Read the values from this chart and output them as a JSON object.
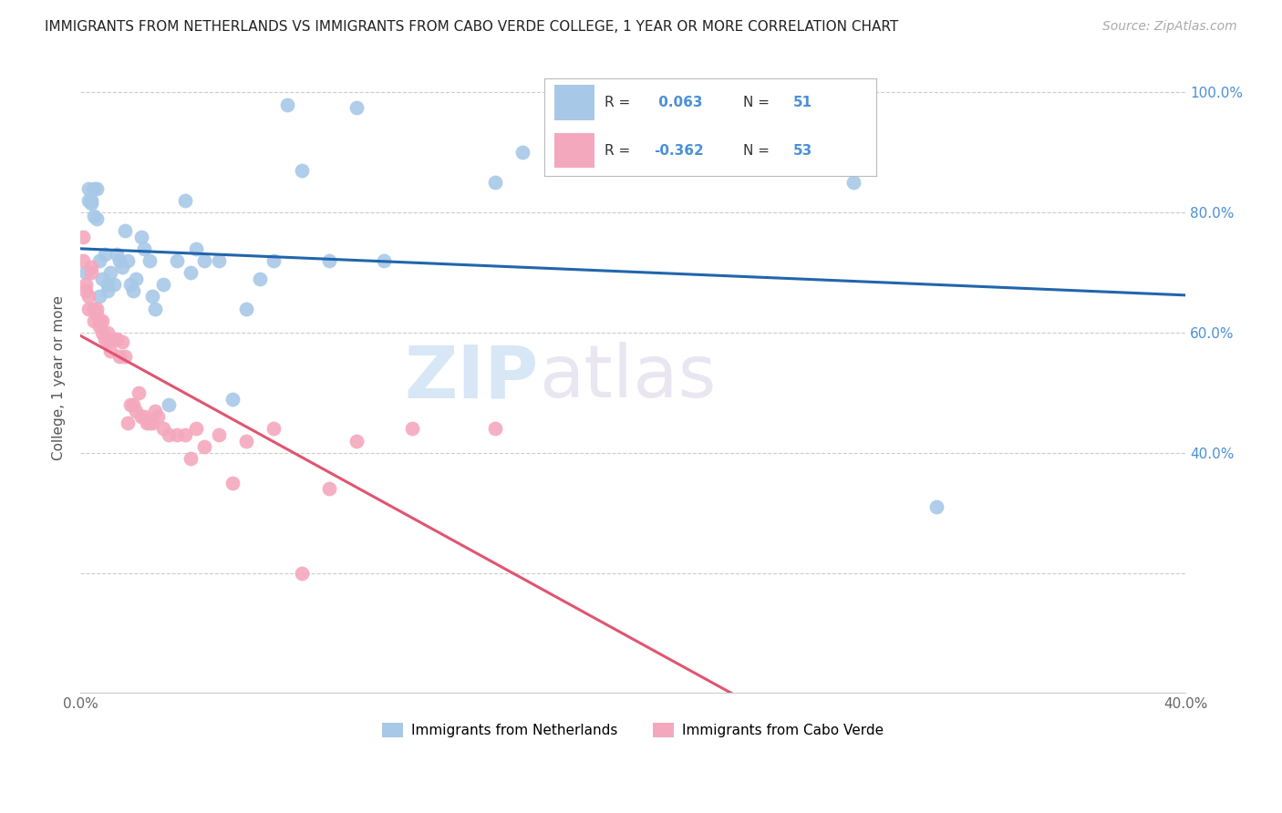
{
  "title": "IMMIGRANTS FROM NETHERLANDS VS IMMIGRANTS FROM CABO VERDE COLLEGE, 1 YEAR OR MORE CORRELATION CHART",
  "source": "Source: ZipAtlas.com",
  "ylabel": "College, 1 year or more",
  "xlim": [
    0.0,
    0.4
  ],
  "ylim": [
    0.0,
    1.05
  ],
  "R_netherlands": 0.063,
  "N_netherlands": 51,
  "R_caboverde": -0.362,
  "N_caboverde": 53,
  "color_netherlands": "#a8c8e8",
  "color_caboverde": "#f4a8be",
  "line_color_netherlands": "#2166ac",
  "line_color_caboverde": "#e05570",
  "watermark_zip": "ZIP",
  "watermark_atlas": "atlas",
  "nl_x": [
    0.002,
    0.003,
    0.003,
    0.004,
    0.004,
    0.005,
    0.005,
    0.006,
    0.006,
    0.007,
    0.007,
    0.008,
    0.009,
    0.01,
    0.01,
    0.011,
    0.012,
    0.013,
    0.014,
    0.015,
    0.016,
    0.017,
    0.018,
    0.019,
    0.02,
    0.022,
    0.023,
    0.025,
    0.026,
    0.027,
    0.03,
    0.032,
    0.035,
    0.038,
    0.04,
    0.042,
    0.045,
    0.05,
    0.055,
    0.06,
    0.065,
    0.07,
    0.075,
    0.08,
    0.09,
    0.1,
    0.11,
    0.15,
    0.16,
    0.28,
    0.31
  ],
  "nl_y": [
    0.7,
    0.84,
    0.82,
    0.82,
    0.815,
    0.84,
    0.795,
    0.84,
    0.79,
    0.72,
    0.66,
    0.69,
    0.73,
    0.67,
    0.68,
    0.7,
    0.68,
    0.73,
    0.72,
    0.71,
    0.77,
    0.72,
    0.68,
    0.67,
    0.69,
    0.76,
    0.74,
    0.72,
    0.66,
    0.64,
    0.68,
    0.48,
    0.72,
    0.82,
    0.7,
    0.74,
    0.72,
    0.72,
    0.49,
    0.64,
    0.69,
    0.72,
    0.98,
    0.87,
    0.72,
    0.975,
    0.72,
    0.85,
    0.9,
    0.85,
    0.31
  ],
  "cv_x": [
    0.001,
    0.001,
    0.002,
    0.002,
    0.003,
    0.003,
    0.004,
    0.004,
    0.005,
    0.005,
    0.006,
    0.006,
    0.007,
    0.007,
    0.008,
    0.008,
    0.009,
    0.01,
    0.01,
    0.011,
    0.012,
    0.013,
    0.014,
    0.015,
    0.016,
    0.017,
    0.018,
    0.019,
    0.02,
    0.021,
    0.022,
    0.023,
    0.024,
    0.025,
    0.026,
    0.027,
    0.028,
    0.03,
    0.032,
    0.035,
    0.038,
    0.04,
    0.042,
    0.045,
    0.05,
    0.055,
    0.06,
    0.07,
    0.08,
    0.09,
    0.1,
    0.12,
    0.15
  ],
  "cv_y": [
    0.76,
    0.72,
    0.68,
    0.67,
    0.66,
    0.64,
    0.71,
    0.7,
    0.64,
    0.62,
    0.64,
    0.63,
    0.62,
    0.61,
    0.62,
    0.6,
    0.59,
    0.6,
    0.585,
    0.57,
    0.59,
    0.59,
    0.56,
    0.585,
    0.56,
    0.45,
    0.48,
    0.48,
    0.47,
    0.5,
    0.46,
    0.46,
    0.45,
    0.45,
    0.45,
    0.47,
    0.46,
    0.44,
    0.43,
    0.43,
    0.43,
    0.39,
    0.44,
    0.41,
    0.43,
    0.35,
    0.42,
    0.44,
    0.2,
    0.34,
    0.42,
    0.44,
    0.44
  ]
}
